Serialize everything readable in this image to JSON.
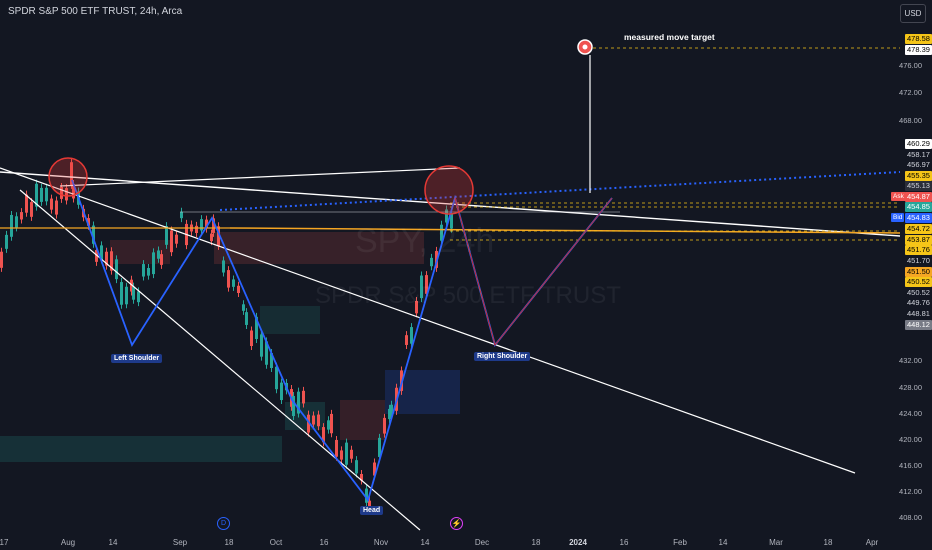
{
  "header": {
    "title": "SPDR S&P 500 ETF TRUST, 24h, Arca",
    "currency": "USD"
  },
  "watermark": {
    "symbol": "SPY, 24h",
    "name": "SPDR S&P 500 ETF TRUST"
  },
  "annotations": {
    "target": "measured move target",
    "left_shoulder": "Left Shoulder",
    "head": "Head",
    "right_shoulder": "Right Shoulder"
  },
  "price_axis": {
    "ticks": [
      "476.00",
      "472.00",
      "468.00",
      "432.00",
      "428.00",
      "424.00",
      "420.00",
      "416.00",
      "412.00",
      "408.00"
    ],
    "tags": [
      {
        "text": "478.58",
        "bg": "#f5c518",
        "fg": "#000000"
      },
      {
        "text": "478.39",
        "bg": "#ffffff",
        "fg": "#000000"
      },
      {
        "text": "460.29",
        "bg": "#ffffff",
        "fg": "#000000"
      },
      {
        "text": "458.17",
        "bg": "#131722",
        "fg": "#d1d4dc"
      },
      {
        "text": "456.97",
        "bg": "#131722",
        "fg": "#d1d4dc"
      },
      {
        "text": "455.35",
        "bg": "#f5c518",
        "fg": "#000000"
      },
      {
        "text": "455.13",
        "bg": "#2a2e39",
        "fg": "#d1d4dc"
      },
      {
        "text": "454.87",
        "bg": "#ef5350",
        "fg": "#ffffff"
      },
      {
        "text": "454.85",
        "bg": "#26a69a",
        "fg": "#ffffff"
      },
      {
        "text": "454.83",
        "bg": "#2962ff",
        "fg": "#ffffff"
      },
      {
        "text": "454.72",
        "bg": "#f5c518",
        "fg": "#000000"
      },
      {
        "text": "453.87",
        "bg": "#f5c518",
        "fg": "#000000"
      },
      {
        "text": "451.76",
        "bg": "#f5c518",
        "fg": "#000000"
      },
      {
        "text": "451.70",
        "bg": "#131722",
        "fg": "#d1d4dc"
      },
      {
        "text": "451.50",
        "bg": "#f5a623",
        "fg": "#000000"
      },
      {
        "text": "450.52",
        "bg": "#f5c518",
        "fg": "#000000"
      },
      {
        "text": "450.52",
        "bg": "#131722",
        "fg": "#d1d4dc"
      },
      {
        "text": "449.76",
        "bg": "#131722",
        "fg": "#d1d4dc"
      },
      {
        "text": "448.81",
        "bg": "#131722",
        "fg": "#d1d4dc"
      },
      {
        "text": "448.12",
        "bg": "#787b86",
        "fg": "#ffffff"
      }
    ],
    "ask_label": "Ask",
    "bid_label": "Bid"
  },
  "time_axis": [
    "17",
    "Aug",
    "14",
    "Sep",
    "18",
    "Oct",
    "16",
    "Nov",
    "14",
    "Dec",
    "18",
    "2024",
    "16",
    "Feb",
    "14",
    "Mar",
    "18",
    "Apr"
  ],
  "colors": {
    "background": "#131722",
    "up": "#26a69a",
    "down": "#ef5350",
    "pattern_line": "#2962ff",
    "trendline": "#ffffff",
    "circle": "#e53935"
  }
}
